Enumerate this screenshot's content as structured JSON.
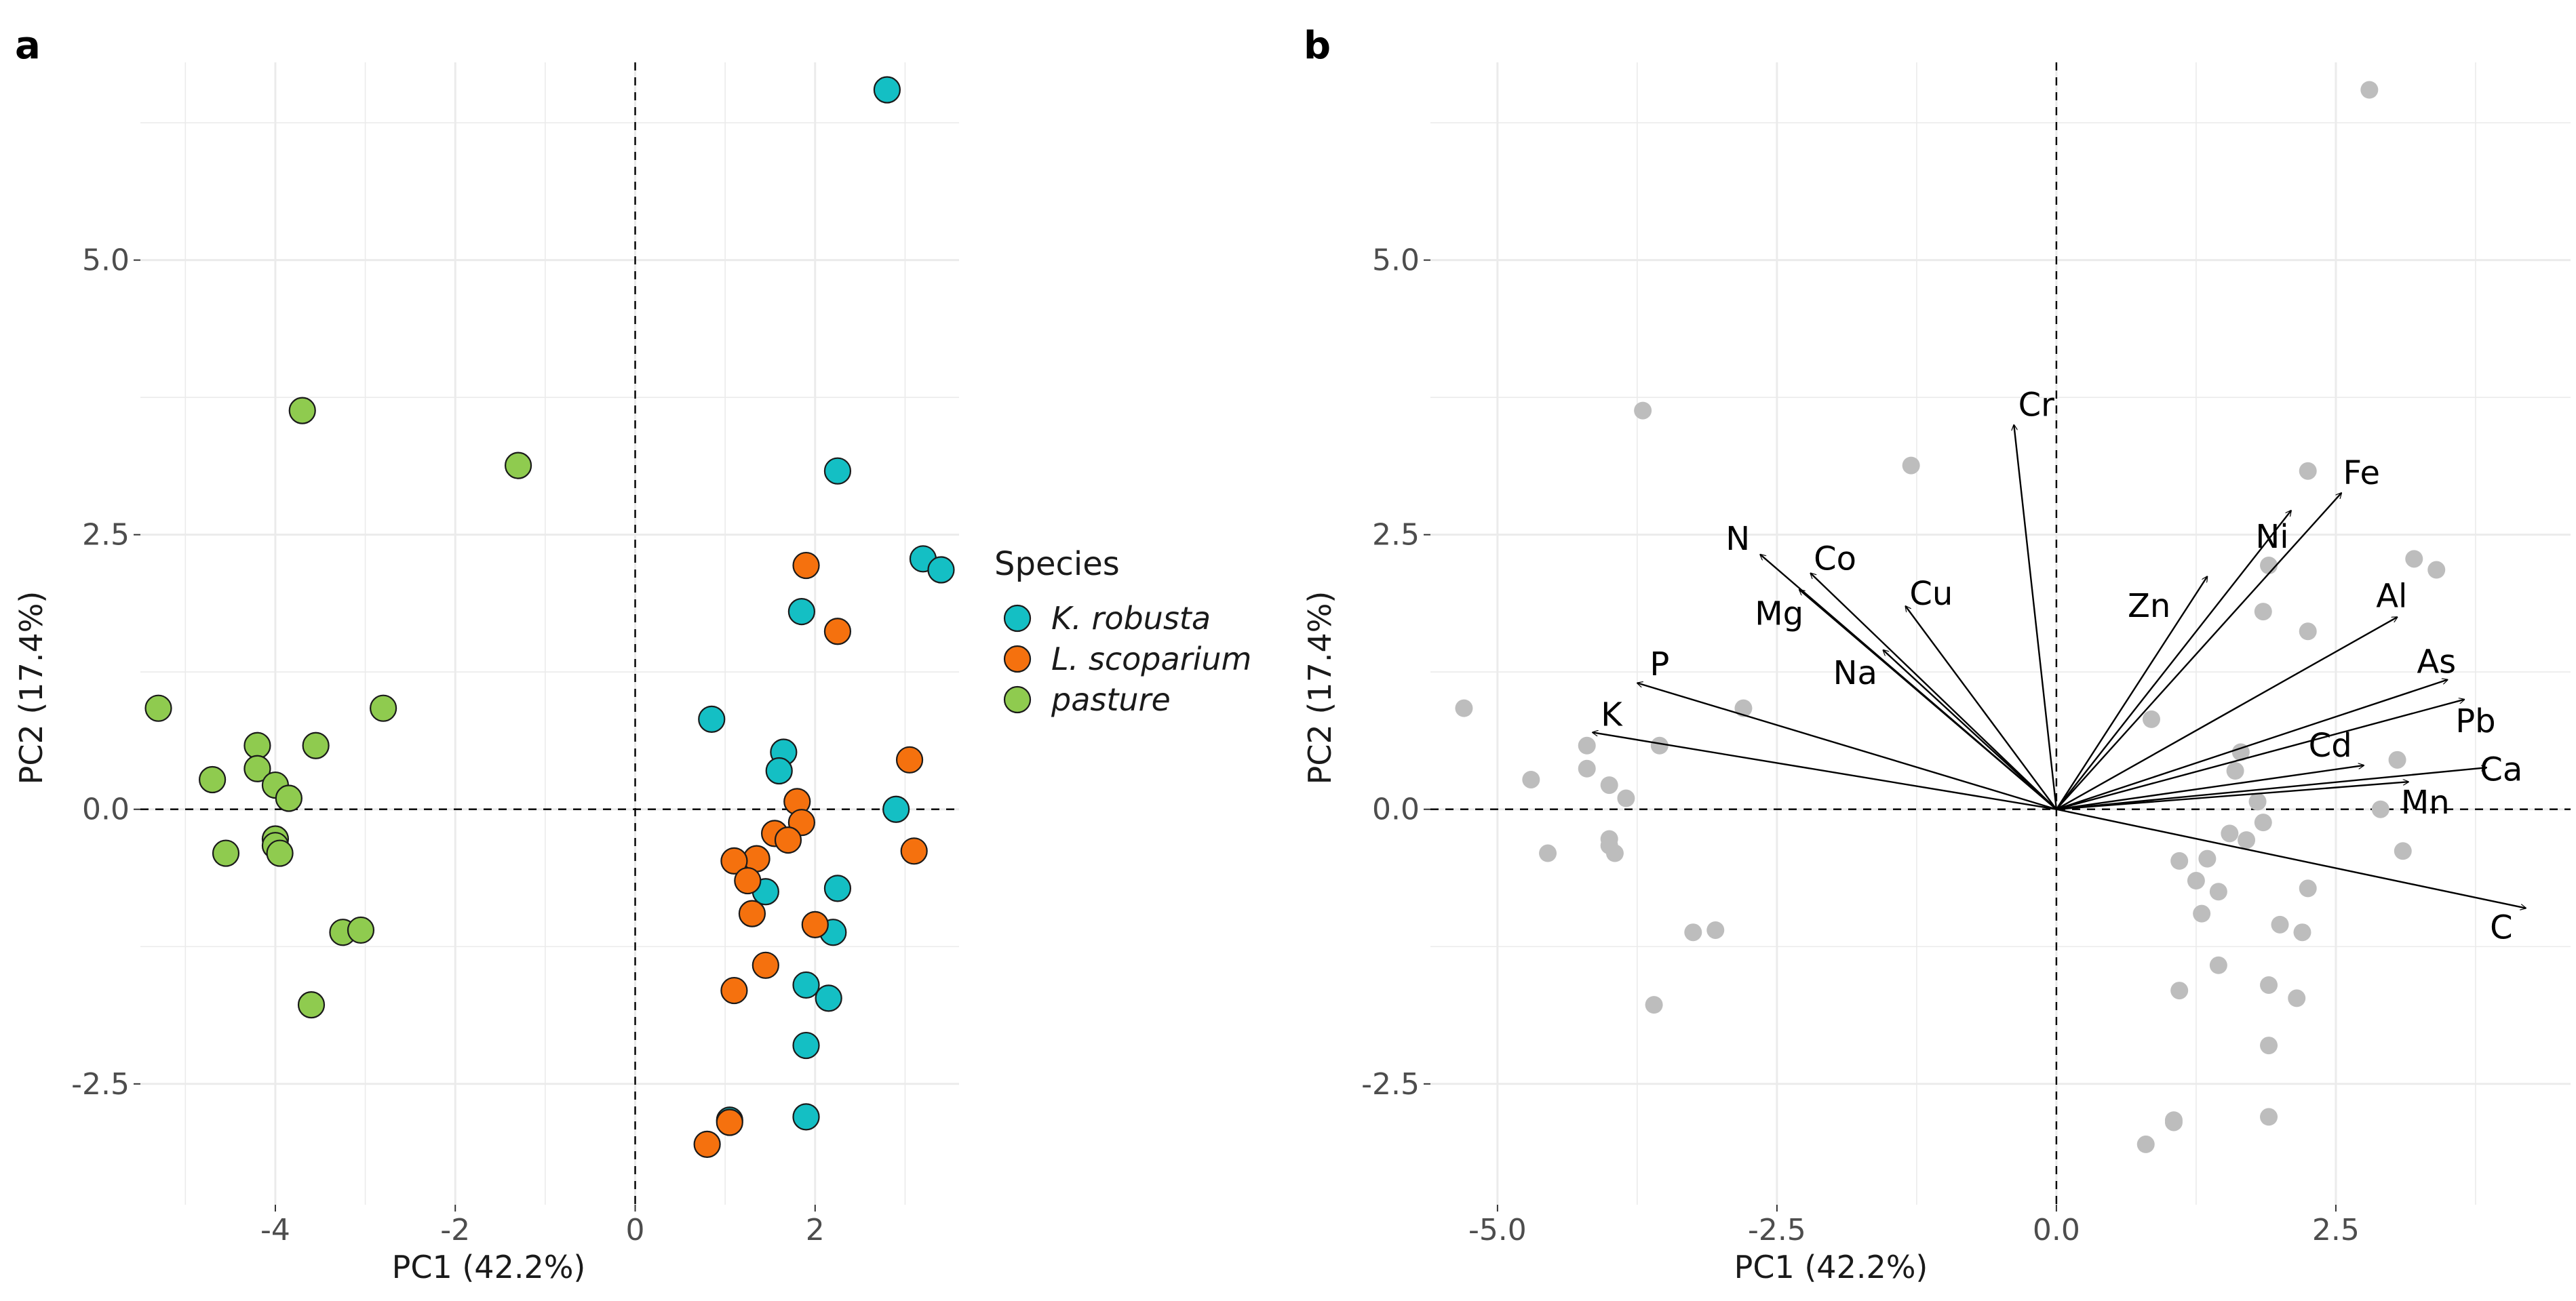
{
  "chart_data": [
    {
      "panel": "a",
      "type": "scatter",
      "xlabel": "PC1 (42.2%)",
      "ylabel": "PC2 (17.4%)",
      "xlim": [
        -5.5,
        3.6
      ],
      "ylim": [
        -3.6,
        6.8
      ],
      "x_ticks": [
        -4,
        -2,
        0,
        2
      ],
      "x_tick_labels": [
        "-4",
        "-2",
        "0",
        "2"
      ],
      "y_ticks": [
        -2.5,
        0.0,
        2.5,
        5.0
      ],
      "y_tick_labels": [
        "-2.5",
        "0.0",
        "2.5",
        "5.0"
      ],
      "grid": true,
      "reference_lines": {
        "x": 0,
        "y": 0
      },
      "legend": {
        "title": "Species",
        "position": "right",
        "entries": [
          {
            "label": "K. robusta",
            "color": "#14BFC4"
          },
          {
            "label": "L. scoparium",
            "color": "#F5710E"
          },
          {
            "label": "pasture",
            "color": "#8FCB4F"
          }
        ]
      },
      "series": [
        {
          "name": "K. robusta",
          "color": "#14BFC4",
          "points": [
            [
              2.8,
              6.55
            ],
            [
              2.25,
              3.08
            ],
            [
              3.2,
              2.28
            ],
            [
              3.4,
              2.18
            ],
            [
              1.85,
              1.8
            ],
            [
              0.85,
              0.82
            ],
            [
              1.65,
              0.52
            ],
            [
              1.6,
              0.35
            ],
            [
              2.9,
              0.0
            ],
            [
              1.45,
              -0.75
            ],
            [
              2.25,
              -0.72
            ],
            [
              2.2,
              -1.12
            ],
            [
              1.9,
              -1.6
            ],
            [
              2.15,
              -1.72
            ],
            [
              1.9,
              -2.15
            ],
            [
              1.05,
              -2.83
            ],
            [
              1.9,
              -2.8
            ]
          ]
        },
        {
          "name": "L. scoparium",
          "color": "#F5710E",
          "points": [
            [
              1.9,
              2.22
            ],
            [
              2.25,
              1.62
            ],
            [
              3.05,
              0.45
            ],
            [
              1.8,
              0.07
            ],
            [
              1.85,
              -0.12
            ],
            [
              1.55,
              -0.22
            ],
            [
              1.7,
              -0.28
            ],
            [
              3.1,
              -0.38
            ],
            [
              1.35,
              -0.45
            ],
            [
              1.1,
              -0.47
            ],
            [
              1.25,
              -0.65
            ],
            [
              1.3,
              -0.95
            ],
            [
              2.0,
              -1.05
            ],
            [
              1.45,
              -1.42
            ],
            [
              1.1,
              -1.65
            ],
            [
              1.05,
              -2.85
            ],
            [
              0.8,
              -3.05
            ]
          ]
        },
        {
          "name": "pasture",
          "color": "#8FCB4F",
          "points": [
            [
              -3.7,
              3.63
            ],
            [
              -1.3,
              3.13
            ],
            [
              -5.3,
              0.92
            ],
            [
              -2.8,
              0.92
            ],
            [
              -4.2,
              0.58
            ],
            [
              -3.55,
              0.58
            ],
            [
              -4.2,
              0.37
            ],
            [
              -4.7,
              0.27
            ],
            [
              -4.0,
              0.22
            ],
            [
              -3.85,
              0.1
            ],
            [
              -4.0,
              -0.27
            ],
            [
              -4.0,
              -0.33
            ],
            [
              -3.95,
              -0.4
            ],
            [
              -4.55,
              -0.4
            ],
            [
              -3.25,
              -1.12
            ],
            [
              -3.05,
              -1.1
            ],
            [
              -3.6,
              -1.78
            ]
          ]
        }
      ]
    },
    {
      "panel": "b",
      "type": "scatter",
      "subtype": "biplot",
      "xlabel": "PC1 (42.2%)",
      "ylabel": "PC2 (17.4%)",
      "xlim": [
        -5.6,
        4.6
      ],
      "ylim": [
        -3.6,
        6.8
      ],
      "x_ticks": [
        -5.0,
        -2.5,
        0.0,
        2.5
      ],
      "x_tick_labels": [
        "-5.0",
        "-2.5",
        "0.0",
        "2.5"
      ],
      "y_ticks": [
        -2.5,
        0.0,
        2.5,
        5.0
      ],
      "y_tick_labels": [
        "-2.5",
        "0.0",
        "2.5",
        "5.0"
      ],
      "grid": true,
      "reference_lines": {
        "x": 0,
        "y": 0
      },
      "points_color": "#BDBDBD",
      "points": [
        [
          2.8,
          6.55
        ],
        [
          2.25,
          3.08
        ],
        [
          3.2,
          2.28
        ],
        [
          3.4,
          2.18
        ],
        [
          1.85,
          1.8
        ],
        [
          0.85,
          0.82
        ],
        [
          1.65,
          0.52
        ],
        [
          1.6,
          0.35
        ],
        [
          2.9,
          0.0
        ],
        [
          1.45,
          -0.75
        ],
        [
          2.25,
          -0.72
        ],
        [
          2.2,
          -1.12
        ],
        [
          1.9,
          -1.6
        ],
        [
          2.15,
          -1.72
        ],
        [
          1.9,
          -2.15
        ],
        [
          1.05,
          -2.83
        ],
        [
          1.9,
          -2.8
        ],
        [
          1.9,
          2.22
        ],
        [
          2.25,
          1.62
        ],
        [
          3.05,
          0.45
        ],
        [
          1.8,
          0.07
        ],
        [
          1.85,
          -0.12
        ],
        [
          1.55,
          -0.22
        ],
        [
          1.7,
          -0.28
        ],
        [
          3.1,
          -0.38
        ],
        [
          1.35,
          -0.45
        ],
        [
          1.1,
          -0.47
        ],
        [
          1.25,
          -0.65
        ],
        [
          1.3,
          -0.95
        ],
        [
          2.0,
          -1.05
        ],
        [
          1.45,
          -1.42
        ],
        [
          1.1,
          -1.65
        ],
        [
          1.05,
          -2.85
        ],
        [
          0.8,
          -3.05
        ],
        [
          -3.7,
          3.63
        ],
        [
          -1.3,
          3.13
        ],
        [
          -5.3,
          0.92
        ],
        [
          -2.8,
          0.92
        ],
        [
          -4.2,
          0.58
        ],
        [
          -3.55,
          0.58
        ],
        [
          -4.2,
          0.37
        ],
        [
          -4.7,
          0.27
        ],
        [
          -4.0,
          0.22
        ],
        [
          -3.85,
          0.1
        ],
        [
          -4.0,
          -0.27
        ],
        [
          -4.0,
          -0.33
        ],
        [
          -3.95,
          -0.4
        ],
        [
          -4.55,
          -0.4
        ],
        [
          -3.25,
          -1.12
        ],
        [
          -3.05,
          -1.1
        ],
        [
          -3.6,
          -1.78
        ]
      ],
      "vectors": [
        {
          "label": "Cr",
          "x": -0.38,
          "y": 3.5,
          "lx": -0.18,
          "ly": 3.68
        },
        {
          "label": "Fe",
          "x": 2.55,
          "y": 2.88,
          "lx": 2.73,
          "ly": 3.06
        },
        {
          "label": "Ni",
          "x": 2.1,
          "y": 2.72,
          "lx": 1.93,
          "ly": 2.48
        },
        {
          "label": "Zn",
          "x": 1.35,
          "y": 2.12,
          "lx": 0.83,
          "ly": 1.85
        },
        {
          "label": "Al",
          "x": 3.05,
          "y": 1.75,
          "lx": 3.0,
          "ly": 1.94
        },
        {
          "label": "As",
          "x": 3.5,
          "y": 1.18,
          "lx": 3.4,
          "ly": 1.34
        },
        {
          "label": "Pb",
          "x": 3.65,
          "y": 1.0,
          "lx": 3.75,
          "ly": 0.8
        },
        {
          "label": "Cd",
          "x": 2.75,
          "y": 0.4,
          "lx": 2.45,
          "ly": 0.58
        },
        {
          "label": "Ca",
          "x": 3.85,
          "y": 0.38,
          "lx": 3.98,
          "ly": 0.36
        },
        {
          "label": "Mn",
          "x": 3.15,
          "y": 0.25,
          "lx": 3.3,
          "ly": 0.06
        },
        {
          "label": "C",
          "x": 4.2,
          "y": -0.9,
          "lx": 3.98,
          "ly": -1.08
        },
        {
          "label": "N",
          "x": -2.65,
          "y": 2.32,
          "lx": -2.85,
          "ly": 2.46
        },
        {
          "label": "Co",
          "x": -2.2,
          "y": 2.15,
          "lx": -1.98,
          "ly": 2.28
        },
        {
          "label": "Mg",
          "x": -2.3,
          "y": 2.0,
          "lx": -2.48,
          "ly": 1.78
        },
        {
          "label": "Cu",
          "x": -1.35,
          "y": 1.85,
          "lx": -1.12,
          "ly": 1.96
        },
        {
          "label": "Na",
          "x": -1.55,
          "y": 1.45,
          "lx": -1.8,
          "ly": 1.24
        },
        {
          "label": "P",
          "x": -3.75,
          "y": 1.15,
          "lx": -3.55,
          "ly": 1.32
        },
        {
          "label": "K",
          "x": -4.15,
          "y": 0.7,
          "lx": -3.98,
          "ly": 0.86
        }
      ]
    }
  ],
  "panels": {
    "a": "a",
    "b": "b"
  }
}
